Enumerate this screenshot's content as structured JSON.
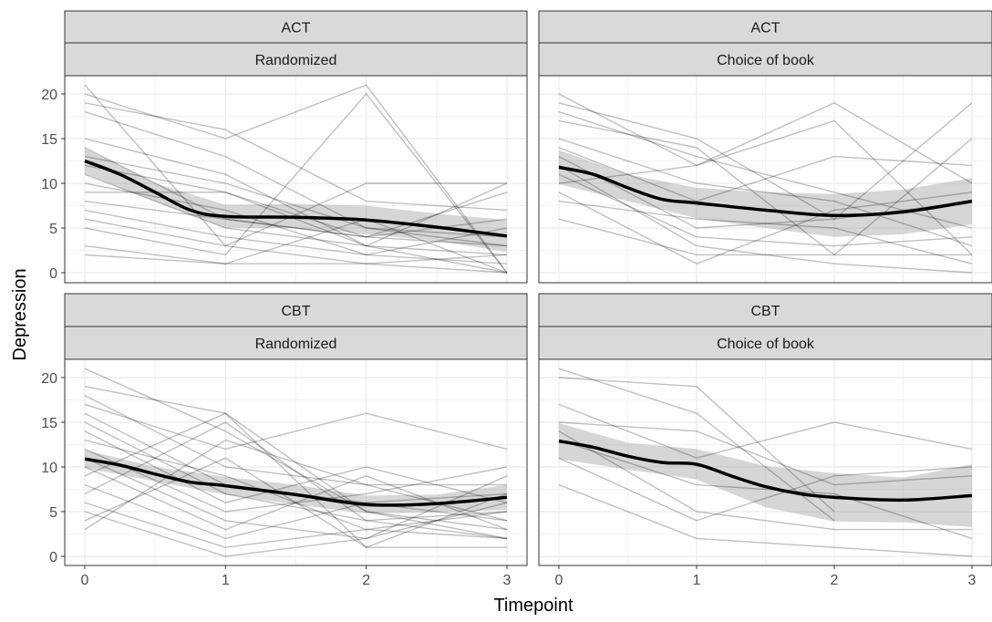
{
  "chart_data": {
    "type": "line",
    "facet_rows": [
      "ACT",
      "CBT"
    ],
    "facet_cols": [
      "Randomized",
      "Choice of book"
    ],
    "xlabel": "Timepoint",
    "ylabel": "Depression",
    "xlim": [
      0,
      3
    ],
    "ylim": [
      0,
      21
    ],
    "x_ticks": [
      0,
      1,
      2,
      3
    ],
    "y_ticks": [
      0,
      5,
      10,
      15,
      20
    ],
    "grid": true,
    "legend": "none",
    "panels": [
      {
        "strip_top": "ACT",
        "strip_bottom": "Randomized",
        "individual_lines": [
          [
            21,
            3,
            10,
            10
          ],
          [
            20,
            15,
            21,
            0
          ],
          [
            19,
            16,
            8,
            7
          ],
          [
            18,
            13,
            5,
            4
          ],
          [
            15,
            11,
            3,
            2
          ],
          [
            14,
            6,
            4,
            9
          ],
          [
            13,
            10,
            5,
            3
          ],
          [
            12,
            9,
            4,
            6
          ],
          [
            11,
            5,
            3,
            0
          ],
          [
            10,
            7,
            2,
            5
          ],
          [
            9,
            9,
            3,
            10
          ],
          [
            8,
            6,
            4,
            3
          ],
          [
            7,
            4,
            2,
            1
          ],
          [
            6,
            3,
            1,
            2
          ],
          [
            5,
            2,
            20,
            0
          ],
          [
            3,
            1,
            6,
            0
          ],
          [
            2,
            1,
            1,
            0
          ]
        ],
        "trend": [
          [
            0,
            12.5
          ],
          [
            0.25,
            11.0
          ],
          [
            0.5,
            9.0
          ],
          [
            0.75,
            7.0
          ],
          [
            1,
            6.3
          ],
          [
            1.5,
            6.2
          ],
          [
            2,
            5.9
          ],
          [
            2.5,
            5.1
          ],
          [
            3,
            4.1
          ]
        ],
        "band": [
          [
            0,
            11.1,
            13.9
          ],
          [
            0.5,
            8.0,
            10.0
          ],
          [
            1,
            5.0,
            7.6
          ],
          [
            1.5,
            5.0,
            7.7
          ],
          [
            2,
            4.3,
            7.5
          ],
          [
            2.5,
            3.6,
            6.6
          ],
          [
            3,
            2.3,
            5.9
          ]
        ]
      },
      {
        "strip_top": "ACT",
        "strip_bottom": "Choice of book",
        "individual_lines": [
          [
            20,
            12,
            19,
            10
          ],
          [
            19,
            15,
            6,
            19
          ],
          [
            18,
            13,
            9,
            5
          ],
          [
            17,
            14,
            2,
            15
          ],
          [
            15,
            10,
            8,
            3
          ],
          [
            14,
            8,
            13,
            12
          ],
          [
            13,
            5,
            6,
            8
          ],
          [
            12,
            3,
            1,
            0
          ],
          [
            11,
            4,
            3,
            4
          ],
          [
            10,
            12,
            17,
            2
          ],
          [
            9,
            1,
            7,
            9
          ],
          [
            8,
            6,
            5,
            1
          ],
          [
            6,
            2,
            2,
            2
          ]
        ],
        "trend": [
          [
            0,
            11.8
          ],
          [
            0.25,
            11.0
          ],
          [
            0.5,
            9.5
          ],
          [
            0.75,
            8.2
          ],
          [
            1,
            7.8
          ],
          [
            1.5,
            7.0
          ],
          [
            2,
            6.4
          ],
          [
            2.5,
            6.8
          ],
          [
            3,
            8.0
          ]
        ],
        "band": [
          [
            0,
            9.9,
            13.7
          ],
          [
            0.5,
            8.0,
            11.0
          ],
          [
            1,
            6.1,
            9.5
          ],
          [
            1.5,
            5.0,
            9.0
          ],
          [
            2,
            4.0,
            8.8
          ],
          [
            2.5,
            4.3,
            9.3
          ],
          [
            3,
            5.4,
            10.6
          ]
        ]
      },
      {
        "strip_top": "CBT",
        "strip_bottom": "Randomized",
        "individual_lines": [
          [
            21,
            14,
            5,
            3
          ],
          [
            19,
            16,
            1,
            7
          ],
          [
            18,
            10,
            8,
            8
          ],
          [
            17,
            12,
            16,
            12
          ],
          [
            16,
            8,
            6,
            4
          ],
          [
            15,
            7,
            4,
            2
          ],
          [
            14,
            6,
            10,
            6
          ],
          [
            13,
            9,
            3,
            5
          ],
          [
            12,
            5,
            7,
            10
          ],
          [
            11,
            4,
            2,
            9
          ],
          [
            10,
            3,
            9,
            3
          ],
          [
            9,
            16,
            5,
            2
          ],
          [
            8,
            2,
            6,
            7
          ],
          [
            7,
            15,
            4,
            5
          ],
          [
            6,
            1,
            3,
            2
          ],
          [
            5,
            0,
            2,
            6
          ],
          [
            4,
            11,
            1,
            1
          ],
          [
            3,
            13,
            8,
            4
          ]
        ],
        "trend": [
          [
            0,
            10.9
          ],
          [
            0.25,
            10.2
          ],
          [
            0.5,
            9.2
          ],
          [
            0.75,
            8.3
          ],
          [
            1,
            7.9
          ],
          [
            1.5,
            6.9
          ],
          [
            2,
            5.8
          ],
          [
            2.5,
            5.9
          ],
          [
            3,
            6.6
          ]
        ],
        "band": [
          [
            0,
            9.9,
            11.9
          ],
          [
            0.5,
            8.4,
            10.0
          ],
          [
            1,
            6.9,
            8.9
          ],
          [
            1.5,
            5.8,
            8.0
          ],
          [
            2,
            4.8,
            6.8
          ],
          [
            2.5,
            4.9,
            6.9
          ],
          [
            3,
            5.2,
            8.0
          ]
        ]
      },
      {
        "strip_top": "CBT",
        "strip_bottom": "Choice of book",
        "individual_lines": [
          [
            21,
            16,
            4,
            null
          ],
          [
            20,
            19,
            5,
            null
          ],
          [
            17,
            11,
            15,
            12
          ],
          [
            15,
            14,
            8,
            9
          ],
          [
            14,
            5,
            3,
            3
          ],
          [
            13,
            8,
            7,
            2
          ],
          [
            8,
            2,
            1,
            0
          ],
          [
            11,
            4,
            9,
            10
          ]
        ],
        "trend": [
          [
            0,
            12.9
          ],
          [
            0.25,
            12.2
          ],
          [
            0.5,
            11.2
          ],
          [
            0.75,
            10.5
          ],
          [
            1,
            10.3
          ],
          [
            1.25,
            9.0
          ],
          [
            1.5,
            7.8
          ],
          [
            1.75,
            7.0
          ],
          [
            2,
            6.6
          ],
          [
            2.5,
            6.3
          ],
          [
            3,
            6.8
          ]
        ],
        "band": [
          [
            0,
            10.9,
            14.9
          ],
          [
            0.5,
            9.7,
            12.7
          ],
          [
            1,
            8.6,
            12.0
          ],
          [
            1.5,
            5.5,
            10.1
          ],
          [
            2,
            3.9,
            9.3
          ],
          [
            2.5,
            3.8,
            8.8
          ],
          [
            3,
            3.3,
            10.3
          ]
        ]
      }
    ]
  }
}
